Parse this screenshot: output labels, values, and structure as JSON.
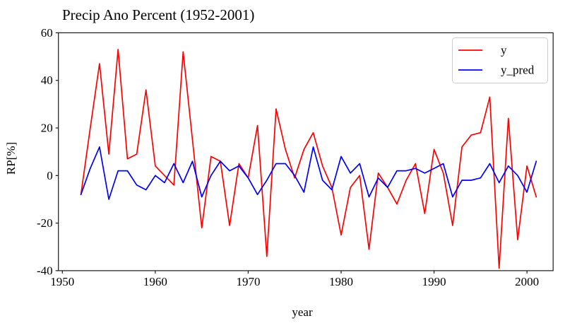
{
  "figure": {
    "title": "Precip Ano Percent (1952-2001)",
    "xlabel": "year",
    "ylabel": "RP[%]"
  },
  "chart_data": {
    "type": "line",
    "title": "Precip Ano Percent (1952-2001)",
    "xlabel": "year",
    "ylabel": "RP[%]",
    "xlim": [
      1949.6,
      2002.8
    ],
    "ylim": [
      -40,
      60
    ],
    "x_ticks": [
      1950,
      1960,
      1970,
      1980,
      1990,
      2000
    ],
    "y_ticks": [
      60,
      40,
      20,
      0,
      -20,
      -40
    ],
    "grid": false,
    "legend_position": "upper right",
    "x": [
      1952,
      1953,
      1954,
      1955,
      1956,
      1957,
      1958,
      1959,
      1960,
      1961,
      1962,
      1963,
      1964,
      1965,
      1966,
      1967,
      1968,
      1969,
      1970,
      1971,
      1972,
      1973,
      1974,
      1975,
      1976,
      1977,
      1978,
      1979,
      1980,
      1981,
      1982,
      1983,
      1984,
      1985,
      1986,
      1987,
      1988,
      1989,
      1990,
      1991,
      1992,
      1993,
      1994,
      1995,
      1996,
      1997,
      1998,
      1999,
      2000,
      2001
    ],
    "series": [
      {
        "name": "y",
        "color": "#ff0000",
        "values": [
          -8,
          20,
          47,
          9,
          53,
          7,
          9,
          36,
          4,
          0,
          -4,
          52,
          15,
          -22,
          8,
          6,
          -21,
          5,
          -1,
          21,
          -34,
          28,
          11,
          -1,
          11,
          18,
          4,
          -5,
          -25,
          -5,
          0,
          -31,
          1,
          -5,
          -12,
          -2,
          5,
          -16,
          11,
          1,
          -21,
          12,
          17,
          18,
          33,
          -39,
          24,
          -27,
          4,
          -9
        ]
      },
      {
        "name": "y_pred",
        "color": "#0000ff",
        "values": [
          -8,
          3,
          12,
          -10,
          2,
          2,
          -4,
          -6,
          0,
          -3,
          5,
          -3,
          6,
          -9,
          0,
          6,
          2,
          4,
          -1,
          -8,
          -2,
          5,
          5,
          0,
          -7,
          12,
          -2,
          -6,
          8,
          1,
          5,
          -9,
          -1,
          -5,
          2,
          2,
          3,
          1,
          3,
          5,
          -9,
          -2,
          -2,
          -1,
          5,
          -3,
          4,
          0,
          -7,
          6
        ]
      }
    ]
  }
}
